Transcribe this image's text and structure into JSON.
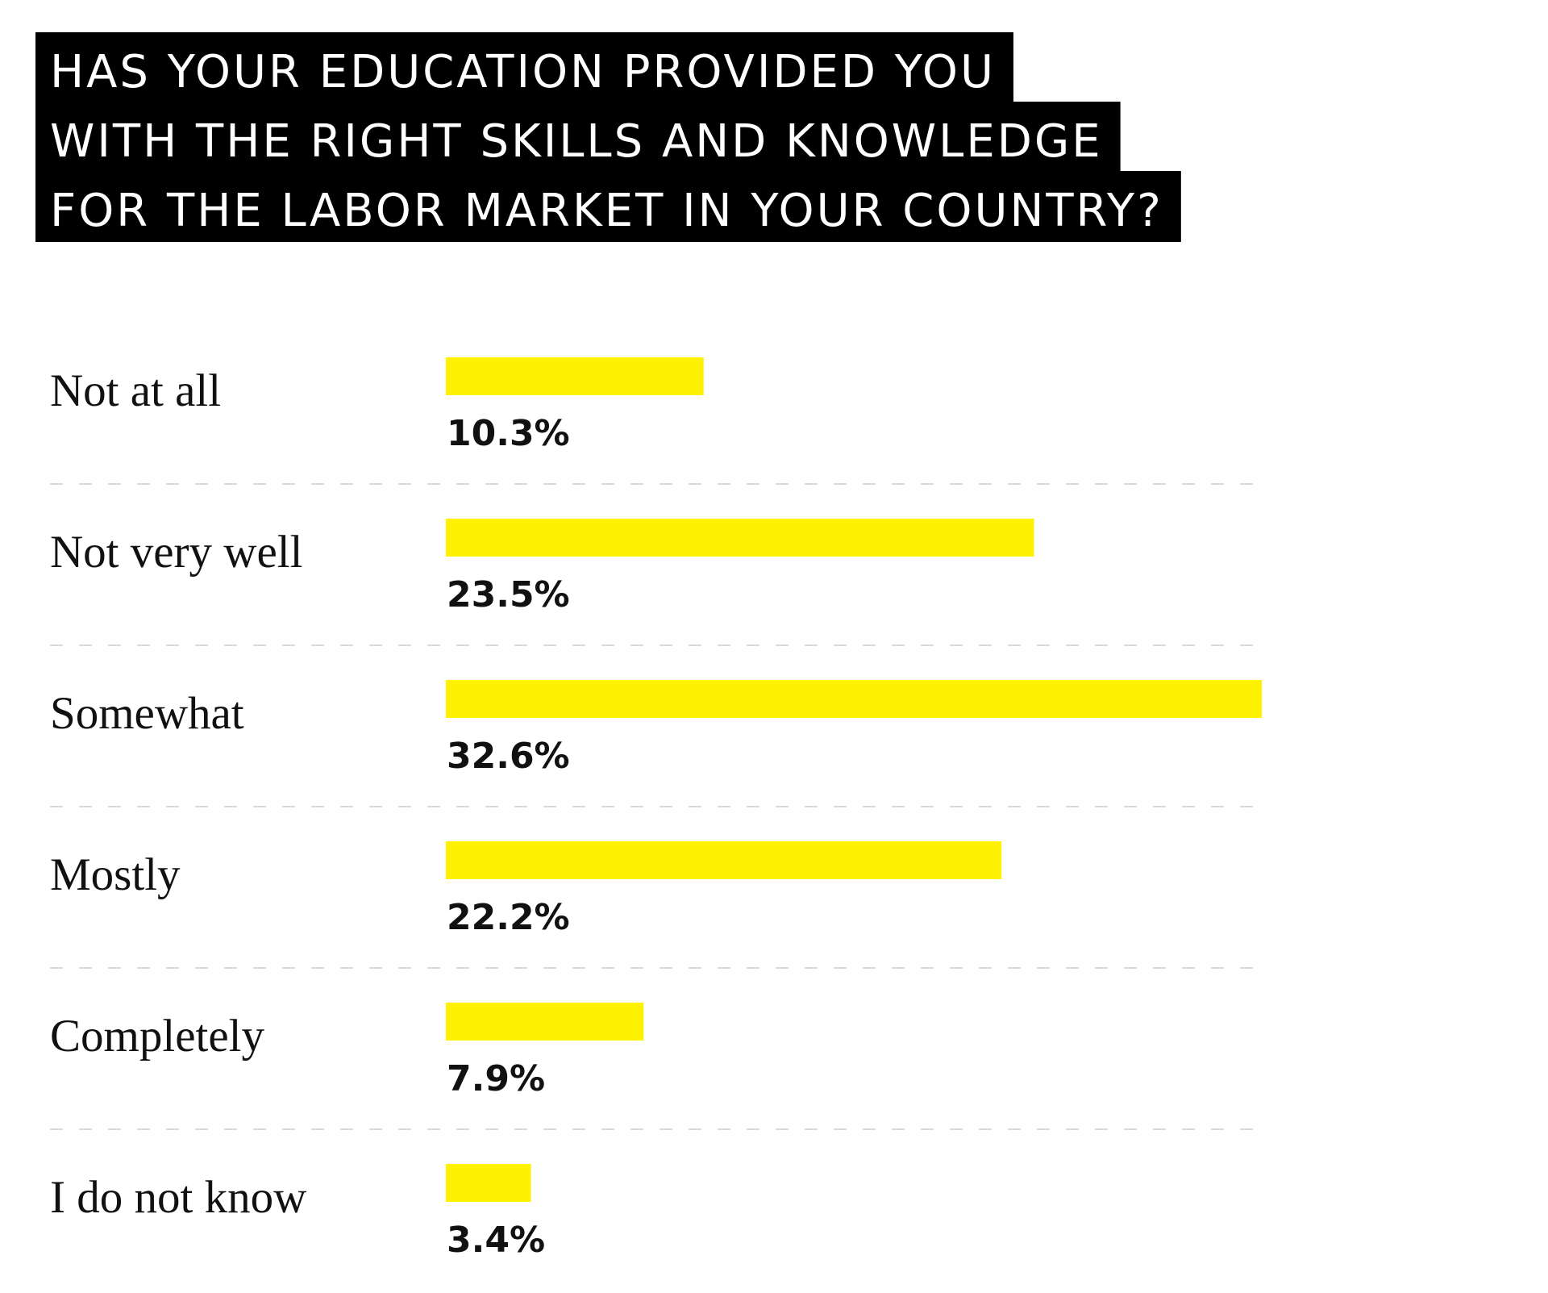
{
  "chart_data": {
    "type": "bar",
    "orientation": "horizontal",
    "title_lines": [
      "HAS YOUR EDUCATION PROVIDED YOU",
      "WITH THE RIGHT SKILLS AND KNOWLEDGE",
      "FOR THE LABOR MARKET IN YOUR COUNTRY?"
    ],
    "categories": [
      "Not at all",
      "Not very well",
      "Somewhat",
      "Mostly",
      "Completely",
      "I do not know"
    ],
    "values": [
      10.3,
      23.5,
      32.6,
      22.2,
      7.9,
      3.4
    ],
    "value_labels": [
      "10.3%",
      "23.5%",
      "32.6%",
      "22.2%",
      "7.9%",
      "3.4%"
    ],
    "unit": "%",
    "xlim": [
      0,
      32.6
    ],
    "grid": false,
    "legend": "none",
    "colors": {
      "bar": "#fff200",
      "title_background": "#000000",
      "title_text": "#ffffff",
      "text": "#111111",
      "separator": "#d8d8d8"
    }
  }
}
